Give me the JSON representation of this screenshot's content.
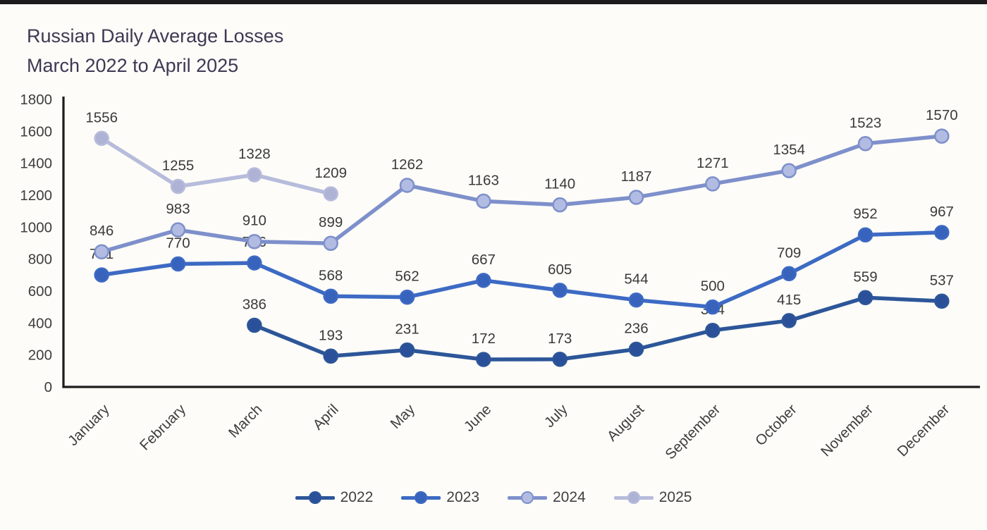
{
  "page": {
    "title": "Russian Daily Average Losses\nMarch 2022 to April 2025"
  },
  "chart_data": {
    "type": "line",
    "title": "Russian Daily Average Losses March 2022 to April 2025",
    "categories": [
      "January",
      "February",
      "March",
      "April",
      "May",
      "June",
      "July",
      "August",
      "September",
      "October",
      "November",
      "December"
    ],
    "series": [
      {
        "name": "2022",
        "color": "#2d5699",
        "marker_color": "#2b509a",
        "values": [
          null,
          null,
          386,
          193,
          231,
          172,
          173,
          236,
          354,
          415,
          559,
          537
        ]
      },
      {
        "name": "2023",
        "color": "#3d6ac4",
        "marker_color": "#3763bc",
        "values": [
          701,
          770,
          776,
          568,
          562,
          667,
          605,
          544,
          500,
          709,
          952,
          967
        ]
      },
      {
        "name": "2024",
        "color": "#7e90cb",
        "marker_color": "#b2bce2",
        "values": [
          846,
          983,
          910,
          899,
          1262,
          1163,
          1140,
          1187,
          1271,
          1354,
          1523,
          1570
        ]
      },
      {
        "name": "2025",
        "color": "#b7bcdc",
        "marker_color": "#aeb3d6",
        "values": [
          1556,
          1255,
          1328,
          1209,
          null,
          null,
          null,
          null,
          null,
          null,
          null,
          null
        ]
      }
    ],
    "ylim": [
      0,
      1800
    ],
    "ytick_step": 200,
    "yticks": [
      0,
      200,
      400,
      600,
      800,
      1000,
      1200,
      1400,
      1600,
      1800
    ],
    "grid": false,
    "legend_position": "bottom",
    "data_labels": true
  }
}
